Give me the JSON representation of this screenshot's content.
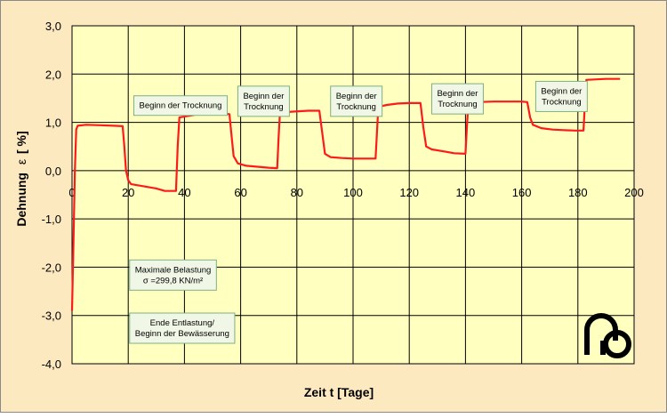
{
  "chart_data": {
    "type": "line",
    "xlabel": "Zeit t [Tage]",
    "ylabel_main": "Dehnung",
    "ylabel_symbol": "ε",
    "ylabel_unit": "[ %]",
    "xlim": [
      0,
      200
    ],
    "ylim": [
      -4.0,
      3.0
    ],
    "x_ticks": [
      {
        "value": 0,
        "label": "0"
      },
      {
        "value": 20,
        "label": "20"
      },
      {
        "value": 40,
        "label": "40"
      },
      {
        "value": 60,
        "label": "60"
      },
      {
        "value": 80,
        "label": "80"
      },
      {
        "value": 100,
        "label": "100"
      },
      {
        "value": 120,
        "label": "120"
      },
      {
        "value": 140,
        "label": "140"
      },
      {
        "value": 160,
        "label": "160"
      },
      {
        "value": 180,
        "label": "180"
      },
      {
        "value": 200,
        "label": "200"
      }
    ],
    "y_ticks": [
      {
        "value": 3,
        "label": "3,0"
      },
      {
        "value": 2,
        "label": "2,0"
      },
      {
        "value": 1,
        "label": "1,0"
      },
      {
        "value": 0,
        "label": "0,0"
      },
      {
        "value": -1,
        "label": "-1,0"
      },
      {
        "value": -2,
        "label": "-2,0"
      },
      {
        "value": -3,
        "label": "-3,0"
      },
      {
        "value": -4,
        "label": "-4,0"
      }
    ],
    "grid": true,
    "series": [
      {
        "color": "#ff1a1a",
        "points": [
          [
            0,
            -2.9
          ],
          [
            0.5,
            -1.5
          ],
          [
            1,
            0.0
          ],
          [
            1.5,
            0.85
          ],
          [
            2,
            0.93
          ],
          [
            5,
            0.95
          ],
          [
            10,
            0.94
          ],
          [
            15,
            0.93
          ],
          [
            18,
            0.92
          ],
          [
            18.6,
            0.5
          ],
          [
            19.2,
            0.0
          ],
          [
            20,
            -0.2
          ],
          [
            21,
            -0.28
          ],
          [
            25,
            -0.32
          ],
          [
            30,
            -0.37
          ],
          [
            33,
            -0.42
          ],
          [
            37,
            -0.42
          ],
          [
            37.6,
            0.5
          ],
          [
            38.2,
            1.1
          ],
          [
            40,
            1.12
          ],
          [
            44,
            1.16
          ],
          [
            48,
            1.18
          ],
          [
            52,
            1.18
          ],
          [
            56,
            1.17
          ],
          [
            56.8,
            0.7
          ],
          [
            57.5,
            0.3
          ],
          [
            59,
            0.15
          ],
          [
            62,
            0.1
          ],
          [
            66,
            0.08
          ],
          [
            70,
            0.06
          ],
          [
            73,
            0.05
          ],
          [
            73.5,
            0.7
          ],
          [
            74,
            1.2
          ],
          [
            78,
            1.22
          ],
          [
            84,
            1.24
          ],
          [
            88,
            1.24
          ],
          [
            89,
            0.8
          ],
          [
            90,
            0.35
          ],
          [
            92,
            0.28
          ],
          [
            96,
            0.26
          ],
          [
            100,
            0.25
          ],
          [
            104,
            0.25
          ],
          [
            108,
            0.25
          ],
          [
            108.5,
            0.8
          ],
          [
            109,
            1.32
          ],
          [
            112,
            1.36
          ],
          [
            116,
            1.39
          ],
          [
            120,
            1.4
          ],
          [
            124,
            1.4
          ],
          [
            125,
            0.9
          ],
          [
            126,
            0.5
          ],
          [
            128,
            0.44
          ],
          [
            132,
            0.4
          ],
          [
            136,
            0.36
          ],
          [
            140,
            0.35
          ],
          [
            140.5,
            0.9
          ],
          [
            141,
            1.4
          ],
          [
            144,
            1.42
          ],
          [
            150,
            1.43
          ],
          [
            156,
            1.43
          ],
          [
            160,
            1.43
          ],
          [
            162,
            1.42
          ],
          [
            163,
            1.1
          ],
          [
            164,
            0.95
          ],
          [
            167,
            0.88
          ],
          [
            171,
            0.85
          ],
          [
            175,
            0.84
          ],
          [
            179,
            0.83
          ],
          [
            182,
            0.83
          ],
          [
            182.5,
            1.4
          ],
          [
            183,
            1.88
          ],
          [
            186,
            1.89
          ],
          [
            190,
            1.9
          ],
          [
            195,
            1.9
          ]
        ]
      }
    ],
    "annotations": [
      {
        "lines": [
          "Beginn der Trocknung"
        ],
        "x": 22,
        "y": 1.55,
        "h_lines": 1
      },
      {
        "lines": [
          "Beginn der",
          "Trocknung"
        ],
        "x": 59,
        "y": 1.75,
        "h_lines": 2
      },
      {
        "lines": [
          "Beginn der",
          "Trocknung"
        ],
        "x": 92,
        "y": 1.75,
        "h_lines": 2
      },
      {
        "lines": [
          "Beginn der",
          "Trocknung"
        ],
        "x": 128,
        "y": 1.8,
        "h_lines": 2
      },
      {
        "lines": [
          "Beginn der",
          "Trocknung"
        ],
        "x": 165,
        "y": 1.85,
        "h_lines": 2
      },
      {
        "lines": [
          "Maximale Belastung",
          "σ =299,8 KN/m²"
        ],
        "x": 20.5,
        "y": -1.85,
        "h_lines": 2
      },
      {
        "lines": [
          "Ende Entlastung/",
          "Beginn der Bewässerung"
        ],
        "x": 20.5,
        "y": -2.95,
        "h_lines": 2
      }
    ]
  },
  "logo": {
    "name": "institute-logo"
  }
}
